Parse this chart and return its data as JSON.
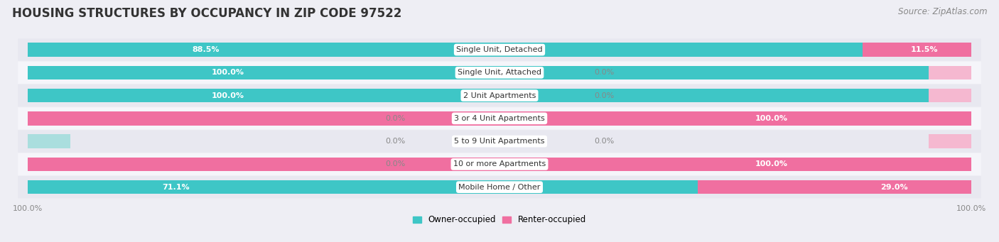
{
  "title": "HOUSING STRUCTURES BY OCCUPANCY IN ZIP CODE 97522",
  "source": "Source: ZipAtlas.com",
  "categories": [
    "Single Unit, Detached",
    "Single Unit, Attached",
    "2 Unit Apartments",
    "3 or 4 Unit Apartments",
    "5 to 9 Unit Apartments",
    "10 or more Apartments",
    "Mobile Home / Other"
  ],
  "owner_pct": [
    88.5,
    100.0,
    100.0,
    0.0,
    0.0,
    0.0,
    71.1
  ],
  "renter_pct": [
    11.5,
    0.0,
    0.0,
    100.0,
    0.0,
    100.0,
    29.0
  ],
  "owner_color": "#3ec6c6",
  "renter_color": "#f06fa0",
  "owner_color_light": "#aadede",
  "renter_color_light": "#f5b8d0",
  "bg_color": "#eeeef4",
  "row_bg_light": "#e8e8f0",
  "row_bg_white": "#f5f5fa",
  "label_bg": "#ffffff",
  "title_fontsize": 12,
  "source_fontsize": 8.5,
  "bar_label_fontsize": 8,
  "cat_label_fontsize": 8,
  "legend_fontsize": 8.5,
  "axis_label_fontsize": 8
}
